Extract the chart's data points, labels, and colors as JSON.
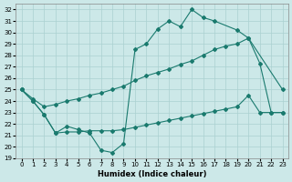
{
  "bg_color": "#cce8e8",
  "grid_color": "#aad0d0",
  "line_color": "#1a7a6e",
  "xlabel": "Humidex (Indice chaleur)",
  "xlim": [
    -0.5,
    23.5
  ],
  "ylim": [
    19,
    32.5
  ],
  "xticks": [
    0,
    1,
    2,
    3,
    4,
    5,
    6,
    7,
    8,
    9,
    10,
    11,
    12,
    13,
    14,
    15,
    16,
    17,
    18,
    19,
    20,
    21,
    22,
    23
  ],
  "yticks": [
    19,
    20,
    21,
    22,
    23,
    24,
    25,
    26,
    27,
    28,
    29,
    30,
    31,
    32
  ],
  "s1_x": [
    0,
    1,
    2,
    3,
    4,
    5,
    6,
    7,
    8,
    9,
    10,
    11,
    12,
    13,
    14,
    15,
    16,
    17,
    19,
    20,
    23
  ],
  "s1_y": [
    25.0,
    24.0,
    22.8,
    21.2,
    21.8,
    21.5,
    21.2,
    19.7,
    19.5,
    20.3,
    28.5,
    29.0,
    30.3,
    31.0,
    30.5,
    32.0,
    31.3,
    31.0,
    30.2,
    29.5,
    25.0
  ],
  "s2_x": [
    0,
    1,
    2,
    3,
    4,
    5,
    6,
    7,
    8,
    9,
    10,
    11,
    12,
    13,
    14,
    15,
    16,
    17,
    18,
    19,
    20,
    21,
    22,
    23
  ],
  "s2_y": [
    25.0,
    24.2,
    23.5,
    23.7,
    24.0,
    24.2,
    24.5,
    24.7,
    25.0,
    25.3,
    25.8,
    26.2,
    26.5,
    26.8,
    27.2,
    27.5,
    28.0,
    28.5,
    28.8,
    29.0,
    29.5,
    27.3,
    23.0,
    23.0
  ],
  "s3_x": [
    0,
    1,
    2,
    3,
    4,
    5,
    6,
    7,
    8,
    9,
    10,
    11,
    12,
    13,
    14,
    15,
    16,
    17,
    18,
    19,
    20,
    21,
    22,
    23
  ],
  "s3_y": [
    25.0,
    24.0,
    22.8,
    21.2,
    21.3,
    21.3,
    21.4,
    21.4,
    21.4,
    21.5,
    21.7,
    21.9,
    22.1,
    22.3,
    22.5,
    22.7,
    22.9,
    23.1,
    23.3,
    23.5,
    24.5,
    23.0,
    23.0,
    23.0
  ]
}
